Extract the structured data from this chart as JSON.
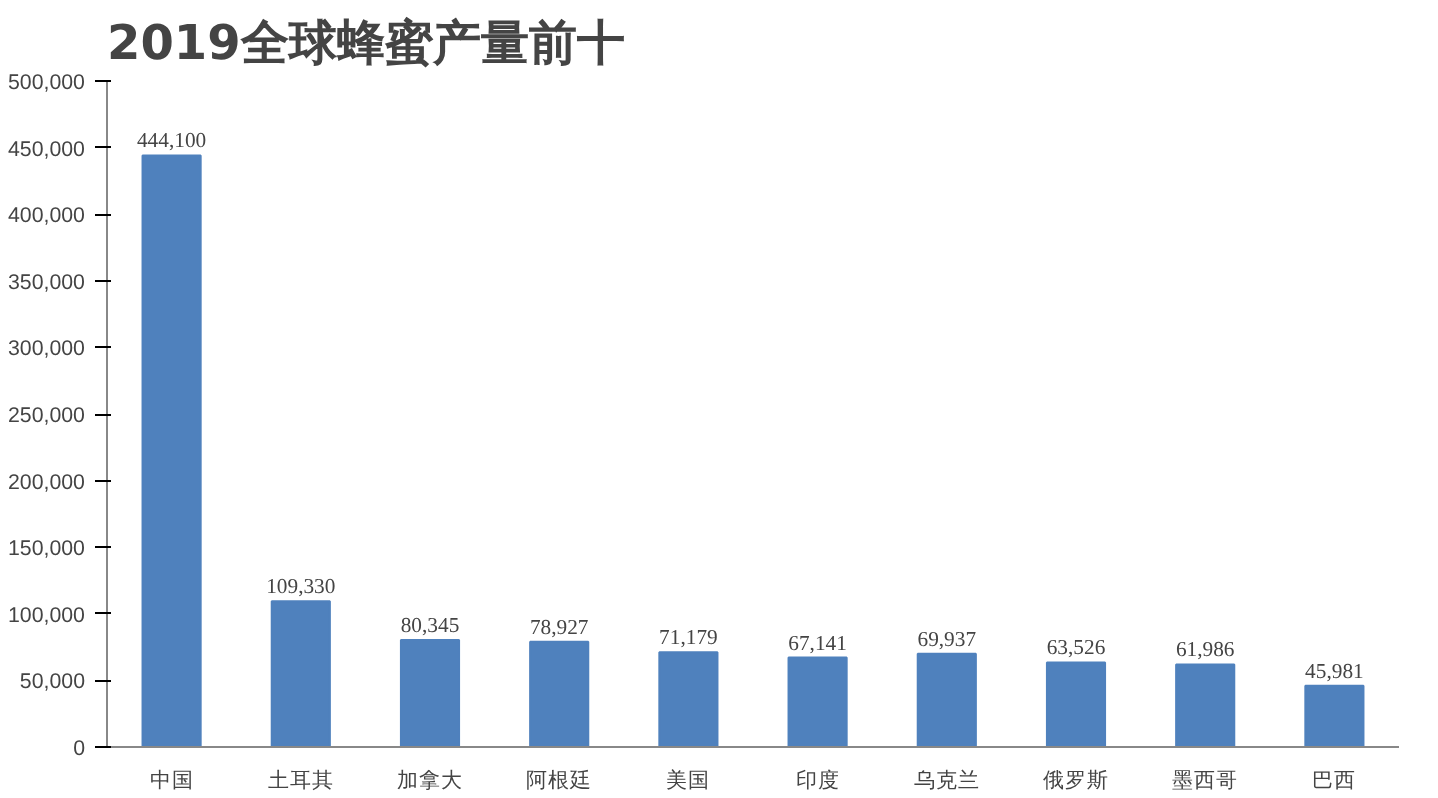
{
  "chart_data": {
    "type": "bar",
    "title": "2019全球蜂蜜产量前十",
    "categories": [
      "中国",
      "土耳其",
      "加拿大",
      "阿根廷",
      "美国",
      "印度",
      "乌克兰",
      "俄罗斯",
      "墨西哥",
      "巴西"
    ],
    "values": [
      444100,
      109330,
      80345,
      78927,
      71179,
      67141,
      69937,
      63526,
      61986,
      45981
    ],
    "color": "#4f81bd",
    "ylim": [
      0,
      500000
    ],
    "yticks": [
      0,
      {
        "value": 50000,
        "label": "50,000"
      },
      {
        "value": 100000,
        "label": "100,000"
      },
      {
        "value": 150000,
        "label": "150,000"
      },
      {
        "value": 200000,
        "label": "200,000"
      },
      {
        "value": 250000,
        "label": "250,000"
      },
      {
        "value": 300000,
        "label": "300,000"
      },
      {
        "value": 350000,
        "label": "350,000"
      },
      {
        "value": 400000,
        "label": "400,000"
      },
      {
        "value": 450000,
        "label": "450,000"
      },
      {
        "value": 500000,
        "label": "500,000"
      }
    ],
    "grid": false,
    "value_labels": [
      "444,100",
      "109,330",
      "80,345",
      "78,927",
      "71,179",
      "67,141",
      "69,937",
      "63,526",
      "61,986",
      "45,981"
    ]
  }
}
